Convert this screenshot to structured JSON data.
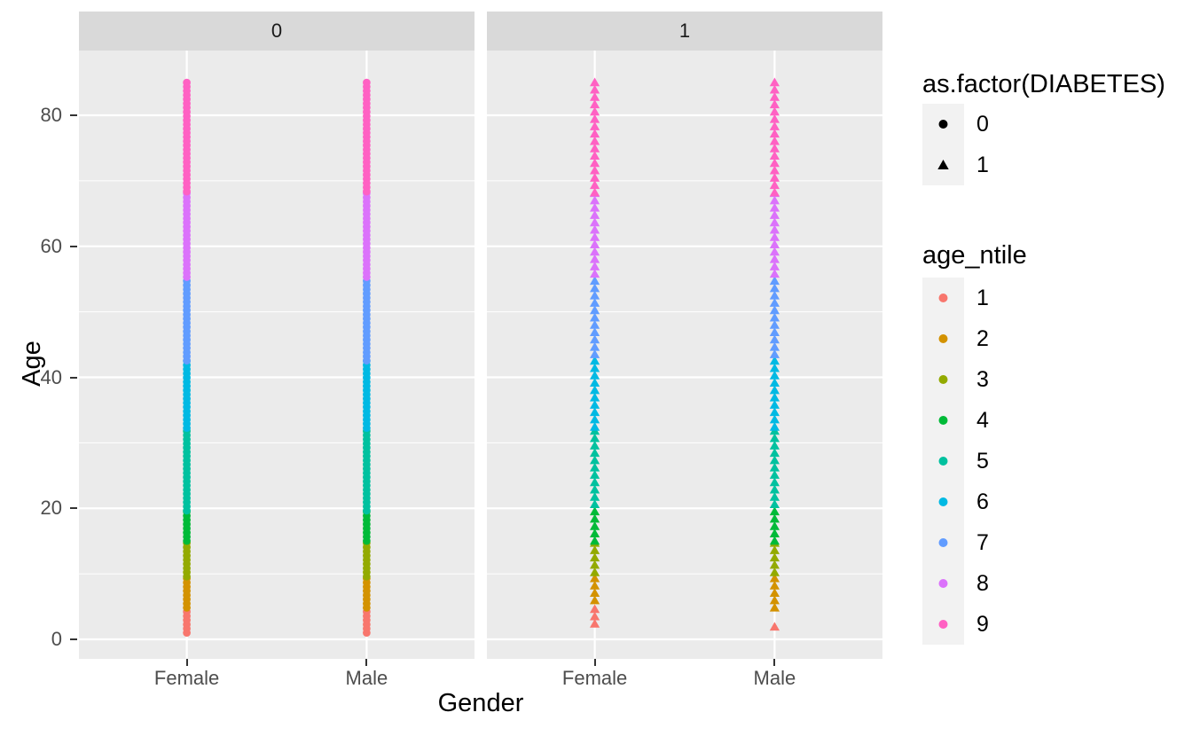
{
  "chart_data": {
    "type": "scatter",
    "title": "",
    "xlabel": "Gender",
    "ylabel": "Age",
    "x_categories": [
      "Female",
      "Male"
    ],
    "y_ticks": [
      0,
      20,
      40,
      60,
      80
    ],
    "y_minor_ticks": [
      10,
      30,
      50,
      70
    ],
    "ylim_panel": [
      -4,
      93
    ],
    "age_range": [
      1,
      85
    ],
    "facet_variable": "as.factor(DIABETES)",
    "facet_values": [
      "0",
      "1"
    ],
    "shape_legend": {
      "title": "as.factor(DIABETES)",
      "items": [
        {
          "label": "0",
          "shape": "circle"
        },
        {
          "label": "1",
          "shape": "triangle"
        }
      ]
    },
    "color_legend": {
      "title": "age_ntile",
      "items": [
        {
          "label": "1",
          "color": "#F8766D"
        },
        {
          "label": "2",
          "color": "#D39200"
        },
        {
          "label": "3",
          "color": "#93AA00"
        },
        {
          "label": "4",
          "color": "#00BA38"
        },
        {
          "label": "5",
          "color": "#00C19F"
        },
        {
          "label": "6",
          "color": "#00B9E3"
        },
        {
          "label": "7",
          "color": "#619CFF"
        },
        {
          "label": "8",
          "color": "#DB72FB"
        },
        {
          "label": "9",
          "color": "#FF61C3"
        }
      ]
    },
    "palette": {
      "1": "#F8766D",
      "2": "#D39200",
      "3": "#93AA00",
      "4": "#00BA38",
      "5": "#00C19F",
      "6": "#00B9E3",
      "7": "#619CFF",
      "8": "#DB72FB",
      "9": "#FF61C3"
    },
    "facets": [
      {
        "label": "0",
        "shape": "circle",
        "columns": [
          {
            "category": "Female",
            "segments": [
              {
                "ntile": "1",
                "age_min": 1.0,
                "age_max": 4.2
              },
              {
                "ntile": "2",
                "age_min": 4.2,
                "age_max": 9.3
              },
              {
                "ntile": "3",
                "age_min": 9.3,
                "age_max": 14.7
              },
              {
                "ntile": "4",
                "age_min": 14.7,
                "age_max": 19.5
              },
              {
                "ntile": "5",
                "age_min": 19.5,
                "age_max": 31.8
              },
              {
                "ntile": "6",
                "age_min": 31.8,
                "age_max": 42.5
              },
              {
                "ntile": "7",
                "age_min": 42.5,
                "age_max": 54.7
              },
              {
                "ntile": "8",
                "age_min": 54.7,
                "age_max": 68.1
              },
              {
                "ntile": "9",
                "age_min": 68.1,
                "age_max": 85.0
              }
            ]
          },
          {
            "category": "Male",
            "segments": [
              {
                "ntile": "1",
                "age_min": 1.0,
                "age_max": 4.2
              },
              {
                "ntile": "2",
                "age_min": 4.2,
                "age_max": 9.3
              },
              {
                "ntile": "3",
                "age_min": 9.3,
                "age_max": 14.7
              },
              {
                "ntile": "4",
                "age_min": 14.7,
                "age_max": 19.5
              },
              {
                "ntile": "5",
                "age_min": 19.5,
                "age_max": 31.8
              },
              {
                "ntile": "6",
                "age_min": 31.8,
                "age_max": 42.5
              },
              {
                "ntile": "7",
                "age_min": 42.5,
                "age_max": 54.7
              },
              {
                "ntile": "8",
                "age_min": 54.7,
                "age_max": 68.1
              },
              {
                "ntile": "9",
                "age_min": 68.1,
                "age_max": 85.0
              }
            ]
          }
        ]
      },
      {
        "label": "1",
        "shape": "triangle",
        "columns": [
          {
            "category": "Female",
            "segments": [
              {
                "ntile": "1",
                "age_min": 1.5,
                "age_max": 4.6
              },
              {
                "ntile": "2",
                "age_min": 5.6,
                "age_max": 9.3
              },
              {
                "ntile": "3",
                "age_min": 9.3,
                "age_max": 14.7
              },
              {
                "ntile": "4",
                "age_min": 14.7,
                "age_max": 19.5
              },
              {
                "ntile": "5",
                "age_min": 19.5,
                "age_max": 31.8
              },
              {
                "ntile": "6",
                "age_min": 31.8,
                "age_max": 42.5
              },
              {
                "ntile": "7",
                "age_min": 42.5,
                "age_max": 54.7
              },
              {
                "ntile": "8",
                "age_min": 54.7,
                "age_max": 68.1
              },
              {
                "ntile": "9",
                "age_min": 68.1,
                "age_max": 85.0
              }
            ]
          },
          {
            "category": "Male",
            "segments": [
              {
                "ntile": "1",
                "age_min": 1.9,
                "age_max": 1.9
              },
              {
                "ntile": "2",
                "age_min": 4.7,
                "age_max": 9.3
              },
              {
                "ntile": "3",
                "age_min": 9.3,
                "age_max": 14.7
              },
              {
                "ntile": "4",
                "age_min": 14.7,
                "age_max": 19.5
              },
              {
                "ntile": "5",
                "age_min": 19.5,
                "age_max": 31.8
              },
              {
                "ntile": "6",
                "age_min": 31.8,
                "age_max": 42.5
              },
              {
                "ntile": "7",
                "age_min": 42.5,
                "age_max": 54.7
              },
              {
                "ntile": "8",
                "age_min": 54.7,
                "age_max": 68.1
              },
              {
                "ntile": "9",
                "age_min": 68.1,
                "age_max": 85.0
              }
            ]
          }
        ]
      }
    ],
    "style_colors": {
      "panel_bg": "#EBEBEB",
      "strip_bg": "#D9D9D9",
      "grid": "#FFFFFF",
      "legend_key_bg": "#F2F2F2",
      "tick_text": "#4D4D4D",
      "strip_text": "#1A1A1A",
      "tick_mark": "#333333"
    }
  }
}
